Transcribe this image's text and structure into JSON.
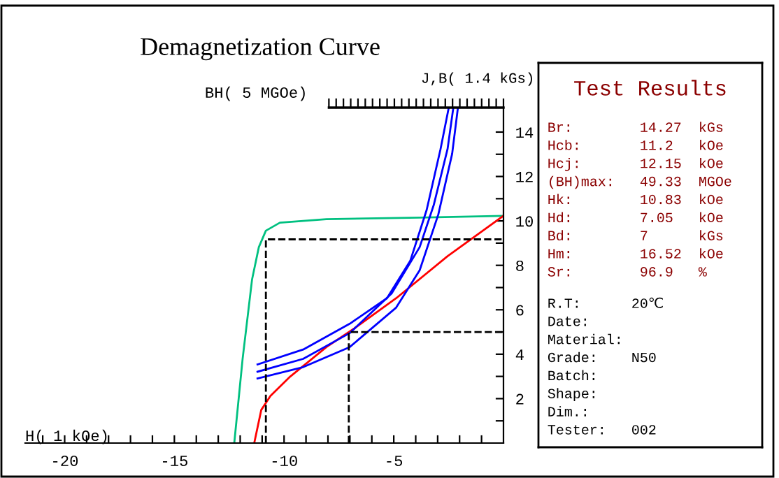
{
  "chart_data": [
    {
      "type": "line",
      "title": "Demagnetization Curve",
      "xlabel": "H( 1 kOe)",
      "ylabel": "J,B( 1.4 kGs)",
      "x2label": "BH( 5 MGOe)",
      "xlim": [
        -21.8,
        0
      ],
      "ylim": [
        0,
        15.1
      ],
      "xticks": [
        {
          "value": -21,
          "label": null
        },
        -20,
        {
          "value": -19,
          "label": null
        },
        {
          "value": -18,
          "label": null
        },
        {
          "value": -17,
          "label": null
        },
        {
          "value": -16,
          "label": null
        },
        -15,
        {
          "value": -14,
          "label": null
        },
        {
          "value": -13,
          "label": null
        },
        {
          "value": -12,
          "label": null
        },
        {
          "value": -11,
          "label": null
        },
        -10,
        {
          "value": -9,
          "label": null
        },
        {
          "value": -8,
          "label": null
        },
        {
          "value": -7,
          "label": null
        },
        {
          "value": -6,
          "label": null
        },
        -5,
        {
          "value": -4,
          "label": null
        },
        {
          "value": -3,
          "label": null
        },
        {
          "value": -2,
          "label": null
        },
        {
          "value": -1,
          "label": null
        }
      ],
      "yticks": [
        {
          "value": 1,
          "label": null
        },
        2,
        {
          "value": 3,
          "label": null
        },
        4,
        {
          "value": 5,
          "label": null
        },
        6,
        {
          "value": 7,
          "label": null
        },
        8,
        {
          "value": 9,
          "label": null
        },
        10,
        {
          "value": 11,
          "label": null
        },
        12,
        {
          "value": 13,
          "label": null
        },
        14
      ],
      "grid": false,
      "line_style": "solid",
      "series": [
        {
          "color": "#00c080",
          "x": [
            -12.27,
            -11.89,
            -11.46,
            -11.15,
            -10.83,
            -10.19,
            -8.07,
            -3.82,
            0
          ],
          "values": [
            0,
            3.79,
            7.36,
            8.82,
            9.56,
            9.92,
            10.08,
            10.15,
            10.23
          ]
        },
        {
          "color": "#ff0000",
          "x": [
            -11.36,
            -11.04,
            -10.62,
            -9.76,
            -8.07,
            -6.8,
            -4.89,
            -2.55,
            0
          ],
          "values": [
            0,
            1.49,
            2.12,
            2.96,
            4.32,
            5.16,
            6.52,
            8.41,
            10.23
          ]
        },
        {
          "color": "#0000ff",
          "x": [
            -11.21,
            -9.13,
            -7.01,
            -5.31,
            -4.25,
            -3.5,
            -2.87,
            -2.5
          ],
          "values": [
            3.54,
            4.21,
            5.37,
            6.52,
            8.2,
            10.5,
            13.23,
            15.07
          ]
        },
        {
          "color": "#0000ff",
          "x": [
            -11.21,
            -9.13,
            -7.01,
            -5.1,
            -3.82,
            -3.18,
            -2.55,
            -2.29
          ],
          "values": [
            3.21,
            3.79,
            4.95,
            6.73,
            8.82,
            10.71,
            13.23,
            15.07
          ]
        },
        {
          "color": "#0000ff",
          "x": [
            -11.21,
            -9.13,
            -7.01,
            -4.89,
            -3.82,
            -2.97,
            -2.34,
            -2.08
          ],
          "values": [
            2.91,
            3.42,
            4.32,
            6.1,
            7.78,
            10.29,
            13.02,
            15.07
          ]
        },
        {
          "color": "#000000",
          "line_style": "dashed",
          "x": [
            -10.83,
            -10.83,
            0
          ],
          "values": [
            0,
            9.17,
            9.17
          ]
        },
        {
          "color": "#000000",
          "line_style": "dashed",
          "x": [
            -7.05,
            -7.05,
            0
          ],
          "values": [
            0,
            5,
            5
          ]
        }
      ]
    },
    {
      "type": "other",
      "title": "Test Results",
      "annotations": [
        "Br:        14.27  kGs",
        "Hcb:       11.2   kOe",
        "Hcj:       12.15  kOe",
        "(BH)max:   49.33  MGOe",
        "Hk:        10.83  kOe",
        "Hd:        7.05   kOe",
        "Bd:        7      kGs",
        "Hm:        16.52  kOe",
        "Sr:        96.9   %",
        "R.T:      20℃",
        "Date:",
        "Material:",
        "Grade:    N50",
        "Batch:",
        "Shape:",
        "Dim.:",
        "Tester:   002"
      ]
    }
  ]
}
